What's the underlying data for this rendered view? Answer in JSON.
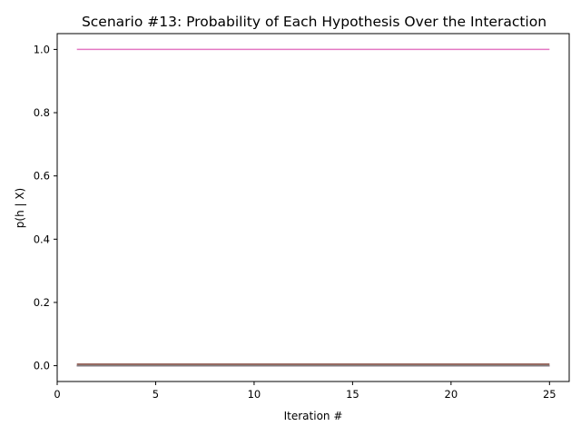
{
  "chart_data": {
    "type": "line",
    "title": "Scenario #13: Probability of Each Hypothesis Over the Interaction",
    "xlabel": "Iteration #",
    "ylabel": "p(h | X)",
    "xlim": [
      0,
      26
    ],
    "ylim": [
      -0.05,
      1.05
    ],
    "xticks": [
      0,
      5,
      10,
      15,
      20,
      25
    ],
    "yticks": [
      0.0,
      0.2,
      0.4,
      0.6,
      0.8,
      1.0
    ],
    "ytick_labels": [
      "0.0",
      "0.2",
      "0.4",
      "0.6",
      "0.8",
      "1.0"
    ],
    "grid": false,
    "legend": "none",
    "series": [
      {
        "color": "#1f77b4",
        "x": [
          1,
          25
        ],
        "y": [
          0.0,
          0.0
        ]
      },
      {
        "color": "#ff7f0e",
        "x": [
          1,
          25
        ],
        "y": [
          0.0,
          0.0
        ]
      },
      {
        "color": "#2ca02c",
        "x": [
          1,
          25
        ],
        "y": [
          0.0,
          0.0
        ]
      },
      {
        "color": "#d62728",
        "x": [
          1,
          25
        ],
        "y": [
          0.0,
          0.0
        ]
      },
      {
        "color": "#9467bd",
        "x": [
          1,
          25
        ],
        "y": [
          0.0,
          0.0
        ]
      },
      {
        "color": "#8c564b",
        "x": [
          1,
          25
        ],
        "y": [
          0.005,
          0.005
        ]
      },
      {
        "color": "#7f7f7f",
        "x": [
          1,
          25
        ],
        "y": [
          0.0,
          0.0
        ]
      },
      {
        "color": "#e377c2",
        "x": [
          1,
          25
        ],
        "y": [
          1.0,
          1.0
        ]
      }
    ]
  }
}
